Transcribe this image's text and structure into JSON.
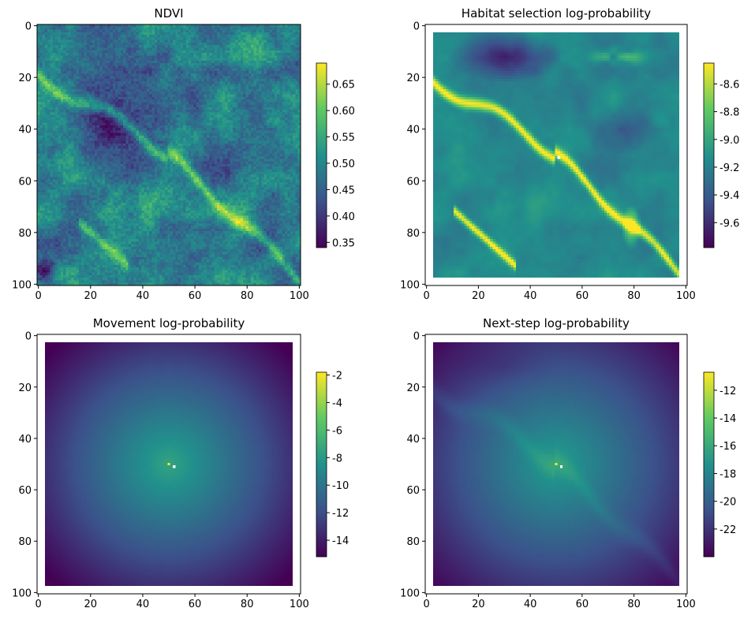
{
  "figure": {
    "background": "#ffffff"
  },
  "colormap": {
    "name": "viridis",
    "stops": [
      "#440154",
      "#3b528b",
      "#21918c",
      "#5ec962",
      "#fde725"
    ]
  },
  "chart_data": [
    {
      "type": "heatmap",
      "title": "NDVI",
      "field": "ndvi",
      "extent_note": "full grid",
      "xlim": [
        0,
        100
      ],
      "ylim": [
        100,
        0
      ],
      "xticks": [
        "0",
        "20",
        "40",
        "60",
        "80",
        "100"
      ],
      "yticks": [
        "0",
        "20",
        "40",
        "60",
        "80",
        "100"
      ],
      "colorbar": {
        "min": 0.34,
        "max": 0.69,
        "ticks": [
          "0.65",
          "0.60",
          "0.55",
          "0.50",
          "0.45",
          "0.40",
          "0.35"
        ],
        "tick_values": [
          0.65,
          0.6,
          0.55,
          0.5,
          0.45,
          0.4,
          0.35
        ]
      },
      "grid": false
    },
    {
      "type": "heatmap",
      "title": "Habitat selection log-probability",
      "field": "habitat",
      "data_range": [
        3,
        97
      ],
      "marker": {
        "x": 51,
        "y": 51,
        "color": "#ffffff"
      },
      "xlim": [
        0,
        100
      ],
      "ylim": [
        100,
        0
      ],
      "xticks": [
        "0",
        "20",
        "40",
        "60",
        "80",
        "100"
      ],
      "yticks": [
        "0",
        "20",
        "40",
        "60",
        "80",
        "100"
      ],
      "colorbar": {
        "min": -9.78,
        "max": -8.45,
        "ticks": [
          "-8.6",
          "-8.8",
          "-9.0",
          "-9.2",
          "-9.4",
          "-9.6"
        ],
        "tick_values": [
          -8.6,
          -8.8,
          -9.0,
          -9.2,
          -9.4,
          -9.6
        ]
      },
      "grid": false
    },
    {
      "type": "heatmap",
      "title": "Movement log-probability",
      "field": "movement",
      "data_range": [
        3,
        97
      ],
      "peak": {
        "x": 50,
        "y": 50
      },
      "marker": {
        "x": 52,
        "y": 51,
        "color": "#ffffff"
      },
      "xlim": [
        0,
        100
      ],
      "ylim": [
        100,
        0
      ],
      "xticks": [
        "0",
        "20",
        "40",
        "60",
        "80",
        "100"
      ],
      "yticks": [
        "0",
        "20",
        "40",
        "60",
        "80",
        "100"
      ],
      "colorbar": {
        "min": -15.2,
        "max": -1.8,
        "ticks": [
          "-2",
          "-4",
          "-6",
          "-8",
          "-10",
          "-12",
          "-14"
        ],
        "tick_values": [
          -2,
          -4,
          -6,
          -8,
          -10,
          -12,
          -14
        ]
      },
      "grid": false
    },
    {
      "type": "heatmap",
      "title": "Next-step log-probability",
      "field": "nextstep",
      "data_range": [
        3,
        97
      ],
      "peak": {
        "x": 50,
        "y": 50
      },
      "marker": {
        "x": 52,
        "y": 51,
        "color": "#ffffff"
      },
      "xlim": [
        0,
        100
      ],
      "ylim": [
        100,
        0
      ],
      "xticks": [
        "0",
        "20",
        "40",
        "60",
        "80",
        "100"
      ],
      "yticks": [
        "0",
        "20",
        "40",
        "60",
        "80",
        "100"
      ],
      "colorbar": {
        "min": -24.0,
        "max": -10.7,
        "ticks": [
          "-12",
          "-14",
          "-16",
          "-18",
          "-20",
          "-22"
        ],
        "tick_values": [
          -12,
          -14,
          -16,
          -18,
          -20,
          -22
        ]
      },
      "grid": false
    }
  ]
}
